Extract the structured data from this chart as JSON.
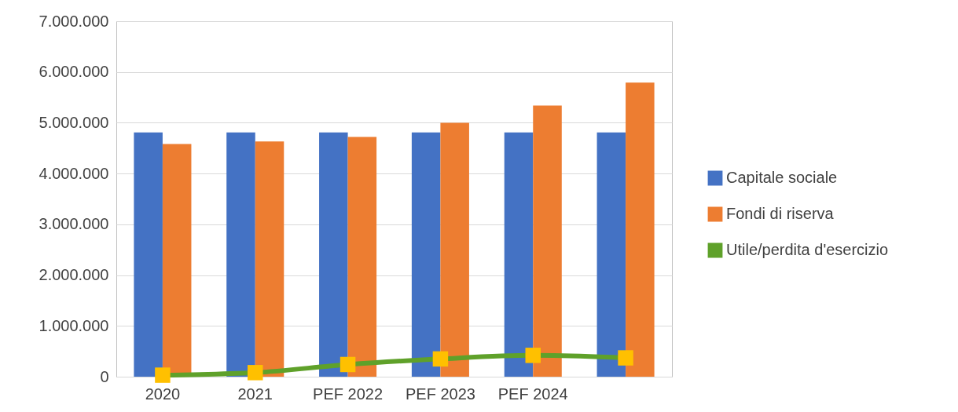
{
  "chart_data": {
    "type": "bar",
    "categories": [
      "2020",
      "2021",
      "PEF 2022",
      "PEF 2023",
      "PEF 2024",
      null
    ],
    "series": [
      {
        "name": "Capitale sociale",
        "color": "#4472c4",
        "values": [
          4810000,
          4810000,
          4810000,
          4810000,
          4810000,
          4810000
        ]
      },
      {
        "name": "Fondi di riserva",
        "color": "#ed7d31",
        "values": [
          4580000,
          4630000,
          4720000,
          5000000,
          5340000,
          5790000
        ]
      },
      {
        "name": "Utile/perdita d'esercizio",
        "type": "line",
        "color": "#5fa12a",
        "values": [
          30000,
          80000,
          240000,
          350000,
          420000,
          370000
        ]
      }
    ],
    "ylim": [
      0,
      7000000
    ],
    "yticks": [
      0,
      {
        "value": 1000000,
        "label": "1.000.000"
      },
      {
        "value": 2000000,
        "label": "2.000.000"
      },
      {
        "value": 3000000,
        "label": "3.000.000"
      },
      {
        "value": 4000000,
        "label": "4.000.000"
      },
      {
        "value": 5000000,
        "label": "5.000.000"
      },
      {
        "value": 6000000,
        "label": "6.000.000"
      },
      {
        "value": 7000000,
        "label": "7.000.000"
      }
    ],
    "grid": "y",
    "legend": "right",
    "marker": "square"
  }
}
